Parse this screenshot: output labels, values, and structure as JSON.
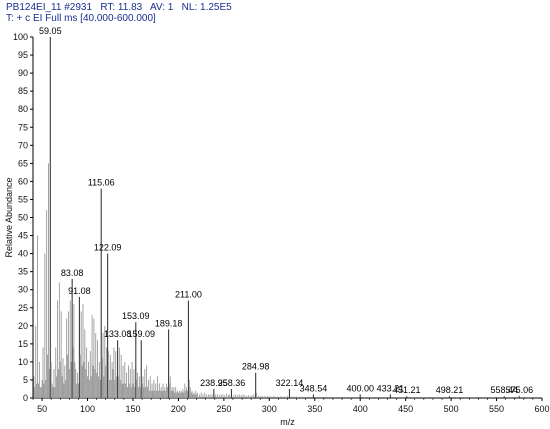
{
  "header": {
    "line1": "PB124EI_11 #2931   RT: 11.83   AV: 1   NL: 1.25E5",
    "line2": "T: + c EI Full ms [40.000-600.000]"
  },
  "chart_data": {
    "type": "bar",
    "xlabel": "m/z",
    "ylabel": "Relative Abundance",
    "xlim": [
      40,
      600
    ],
    "ylim": [
      0,
      100
    ],
    "xticks": [
      50,
      100,
      150,
      200,
      250,
      300,
      350,
      400,
      450,
      500,
      550,
      600
    ],
    "yticks": [
      0,
      5,
      10,
      15,
      20,
      25,
      30,
      35,
      40,
      45,
      50,
      55,
      60,
      65,
      70,
      75,
      80,
      85,
      90,
      95,
      100
    ],
    "labeled_peaks": [
      {
        "mz": 59.05,
        "value": 100,
        "label": "59.05"
      },
      {
        "mz": 115.06,
        "value": 58,
        "label": "115.06"
      },
      {
        "mz": 122.09,
        "value": 40,
        "label": "122.09"
      },
      {
        "mz": 83.08,
        "value": 33,
        "label": "83.08"
      },
      {
        "mz": 91.08,
        "value": 28,
        "label": "91.08"
      },
      {
        "mz": 211.0,
        "value": 27,
        "label": "211.00"
      },
      {
        "mz": 153.09,
        "value": 21,
        "label": "153.09"
      },
      {
        "mz": 189.18,
        "value": 19,
        "label": "189.18"
      },
      {
        "mz": 133.08,
        "value": 16,
        "label": "133.08"
      },
      {
        "mz": 159.09,
        "value": 16,
        "label": "159.09"
      },
      {
        "mz": 284.98,
        "value": 7,
        "label": "284.98"
      },
      {
        "mz": 238.95,
        "value": 2.5,
        "label": "238.95"
      },
      {
        "mz": 258.36,
        "value": 2.5,
        "label": "258.36"
      },
      {
        "mz": 322.14,
        "value": 2.5,
        "label": "322.14"
      },
      {
        "mz": 348.54,
        "value": 1,
        "label": "348.54"
      },
      {
        "mz": 400.0,
        "value": 1,
        "label": "400.00"
      },
      {
        "mz": 433.21,
        "value": 1,
        "label": "433.21"
      },
      {
        "mz": 451.21,
        "value": 0.5,
        "label": "451.21"
      },
      {
        "mz": 498.21,
        "value": 0.5,
        "label": "498.21"
      },
      {
        "mz": 558.44,
        "value": 0.5,
        "label": "558.44"
      },
      {
        "mz": 575.06,
        "value": 0.5,
        "label": "575.06"
      }
    ],
    "peaks": [
      [
        41,
        6
      ],
      [
        42,
        3
      ],
      [
        43,
        20
      ],
      [
        44,
        4
      ],
      [
        45,
        45
      ],
      [
        46,
        4
      ],
      [
        47,
        10
      ],
      [
        48,
        3
      ],
      [
        49,
        3
      ],
      [
        50,
        5
      ],
      [
        51,
        14
      ],
      [
        52,
        4
      ],
      [
        53,
        40
      ],
      [
        54,
        5
      ],
      [
        55,
        52
      ],
      [
        56,
        12
      ],
      [
        57,
        65
      ],
      [
        58,
        8
      ],
      [
        59.05,
        100
      ],
      [
        60,
        10
      ],
      [
        61,
        4
      ],
      [
        62,
        3
      ],
      [
        63,
        8
      ],
      [
        64,
        3
      ],
      [
        65,
        14
      ],
      [
        66,
        6
      ],
      [
        67,
        27
      ],
      [
        68,
        8
      ],
      [
        69,
        32
      ],
      [
        70,
        10
      ],
      [
        71,
        24
      ],
      [
        72,
        6
      ],
      [
        73,
        11
      ],
      [
        74,
        4
      ],
      [
        75,
        9
      ],
      [
        76,
        5
      ],
      [
        77,
        22
      ],
      [
        78,
        12
      ],
      [
        79,
        24
      ],
      [
        80,
        8
      ],
      [
        81,
        27
      ],
      [
        82,
        10
      ],
      [
        83.08,
        33
      ],
      [
        84,
        14
      ],
      [
        85,
        26
      ],
      [
        86,
        10
      ],
      [
        87,
        8
      ],
      [
        88,
        4
      ],
      [
        89,
        7
      ],
      [
        90,
        4
      ],
      [
        91.08,
        28
      ],
      [
        92,
        12
      ],
      [
        93,
        24
      ],
      [
        94,
        9
      ],
      [
        95,
        26
      ],
      [
        96,
        10
      ],
      [
        97,
        19
      ],
      [
        98,
        8
      ],
      [
        99,
        14
      ],
      [
        100,
        6
      ],
      [
        101,
        10
      ],
      [
        102,
        5
      ],
      [
        103,
        13
      ],
      [
        104,
        6
      ],
      [
        105,
        23
      ],
      [
        106,
        9
      ],
      [
        107,
        22
      ],
      [
        108,
        8
      ],
      [
        109,
        18
      ],
      [
        110,
        7
      ],
      [
        111,
        16
      ],
      [
        112,
        6
      ],
      [
        113,
        10
      ],
      [
        114,
        5
      ],
      [
        115.06,
        58
      ],
      [
        116,
        11
      ],
      [
        117,
        18
      ],
      [
        118,
        6
      ],
      [
        119,
        20
      ],
      [
        120,
        9
      ],
      [
        121,
        14
      ],
      [
        122.09,
        40
      ],
      [
        123,
        13
      ],
      [
        124,
        5
      ],
      [
        125,
        12
      ],
      [
        126,
        5
      ],
      [
        127,
        10
      ],
      [
        128,
        8
      ],
      [
        129,
        14
      ],
      [
        130,
        5
      ],
      [
        131,
        13
      ],
      [
        132,
        6
      ],
      [
        133.08,
        16
      ],
      [
        134,
        6
      ],
      [
        135,
        14
      ],
      [
        136,
        5
      ],
      [
        137,
        12
      ],
      [
        138,
        4
      ],
      [
        139,
        9
      ],
      [
        140,
        4
      ],
      [
        141,
        10
      ],
      [
        142,
        4
      ],
      [
        143,
        7
      ],
      [
        144,
        3
      ],
      [
        145,
        9
      ],
      [
        146,
        4
      ],
      [
        147,
        8
      ],
      [
        148,
        3
      ],
      [
        149,
        10
      ],
      [
        150,
        4
      ],
      [
        151,
        8
      ],
      [
        152,
        3
      ],
      [
        153.09,
        21
      ],
      [
        154,
        5
      ],
      [
        155,
        7
      ],
      [
        156,
        3
      ],
      [
        157,
        6
      ],
      [
        158,
        3
      ],
      [
        159.09,
        16
      ],
      [
        160,
        4
      ],
      [
        161,
        6
      ],
      [
        162,
        3
      ],
      [
        163,
        8
      ],
      [
        164,
        3
      ],
      [
        165,
        9
      ],
      [
        166,
        3
      ],
      [
        167,
        5
      ],
      [
        168,
        2
      ],
      [
        169,
        6
      ],
      [
        170,
        2
      ],
      [
        171,
        4
      ],
      [
        172,
        2
      ],
      [
        173,
        5
      ],
      [
        174,
        2
      ],
      [
        175,
        4
      ],
      [
        176,
        2
      ],
      [
        177,
        6
      ],
      [
        178,
        2
      ],
      [
        179,
        4
      ],
      [
        180,
        2
      ],
      [
        181,
        3
      ],
      [
        182,
        2
      ],
      [
        183,
        4
      ],
      [
        184,
        2
      ],
      [
        185,
        3
      ],
      [
        186,
        2
      ],
      [
        187,
        4
      ],
      [
        188,
        3
      ],
      [
        189.18,
        19
      ],
      [
        190,
        4
      ],
      [
        191,
        6
      ],
      [
        192,
        2
      ],
      [
        193,
        3
      ],
      [
        194,
        2
      ],
      [
        195,
        3
      ],
      [
        196,
        1.5
      ],
      [
        197,
        3
      ],
      [
        198,
        1.5
      ],
      [
        199,
        2
      ],
      [
        200,
        1.5
      ],
      [
        201,
        2
      ],
      [
        202,
        1.5
      ],
      [
        203,
        2
      ],
      [
        204,
        1.5
      ],
      [
        205,
        2.5
      ],
      [
        206,
        1.5
      ],
      [
        207,
        4
      ],
      [
        208,
        2
      ],
      [
        209,
        3
      ],
      [
        210,
        2
      ],
      [
        211.0,
        27
      ],
      [
        212,
        5
      ],
      [
        213,
        3
      ],
      [
        214,
        1.5
      ],
      [
        215,
        2
      ],
      [
        216,
        1
      ],
      [
        217,
        1.5
      ],
      [
        218,
        1
      ],
      [
        219,
        2
      ],
      [
        220,
        1
      ],
      [
        221,
        1.5
      ],
      [
        223,
        1
      ],
      [
        225,
        1.5
      ],
      [
        227,
        1
      ],
      [
        229,
        1.5
      ],
      [
        231,
        1
      ],
      [
        233,
        1
      ],
      [
        235,
        1
      ],
      [
        237,
        1
      ],
      [
        238.95,
        2.5
      ],
      [
        241,
        1
      ],
      [
        243,
        1
      ],
      [
        245,
        0.8
      ],
      [
        247,
        1
      ],
      [
        249,
        1
      ],
      [
        251,
        0.8
      ],
      [
        253,
        1.2
      ],
      [
        255,
        0.8
      ],
      [
        256,
        1
      ],
      [
        258.36,
        2.5
      ],
      [
        261,
        0.8
      ],
      [
        263,
        1
      ],
      [
        265,
        0.8
      ],
      [
        267,
        1
      ],
      [
        269,
        0.8
      ],
      [
        271,
        1
      ],
      [
        273,
        0.8
      ],
      [
        275,
        0.6
      ],
      [
        277,
        0.8
      ],
      [
        279,
        0.6
      ],
      [
        281,
        0.8
      ],
      [
        283,
        1
      ],
      [
        284.98,
        7
      ],
      [
        286,
        1.5
      ],
      [
        288,
        0.6
      ],
      [
        290,
        0.5
      ],
      [
        292,
        0.6
      ],
      [
        295,
        0.5
      ],
      [
        298,
        0.6
      ],
      [
        301,
        0.5
      ],
      [
        305,
        0.6
      ],
      [
        309,
        0.4
      ],
      [
        313,
        0.5
      ],
      [
        317,
        0.4
      ],
      [
        320,
        0.6
      ],
      [
        322.14,
        2.5
      ],
      [
        325,
        0.5
      ],
      [
        330,
        0.4
      ],
      [
        335,
        0.4
      ],
      [
        340,
        0.3
      ],
      [
        344,
        0.4
      ],
      [
        348.54,
        1
      ],
      [
        352,
        0.3
      ],
      [
        357,
        0.3
      ],
      [
        362,
        0.4
      ],
      [
        367,
        0.3
      ],
      [
        372,
        0.3
      ],
      [
        378,
        0.3
      ],
      [
        384,
        0.3
      ],
      [
        390,
        0.3
      ],
      [
        395,
        0.3
      ],
      [
        400.0,
        1
      ],
      [
        405,
        0.3
      ],
      [
        412,
        0.3
      ],
      [
        420,
        0.3
      ],
      [
        427,
        0.3
      ],
      [
        433.21,
        1
      ],
      [
        440,
        0.3
      ],
      [
        446,
        0.3
      ],
      [
        451.21,
        0.5
      ],
      [
        460,
        0.3
      ],
      [
        470,
        0.3
      ],
      [
        480,
        0.3
      ],
      [
        490,
        0.3
      ],
      [
        498.21,
        0.5
      ],
      [
        506,
        0.3
      ],
      [
        515,
        0.3
      ],
      [
        525,
        0.3
      ],
      [
        535,
        0.3
      ],
      [
        545,
        0.3
      ],
      [
        558.44,
        0.5
      ],
      [
        566,
        0.3
      ],
      [
        575.06,
        0.5
      ],
      [
        585,
        0.3
      ],
      [
        595,
        0.3
      ]
    ]
  }
}
